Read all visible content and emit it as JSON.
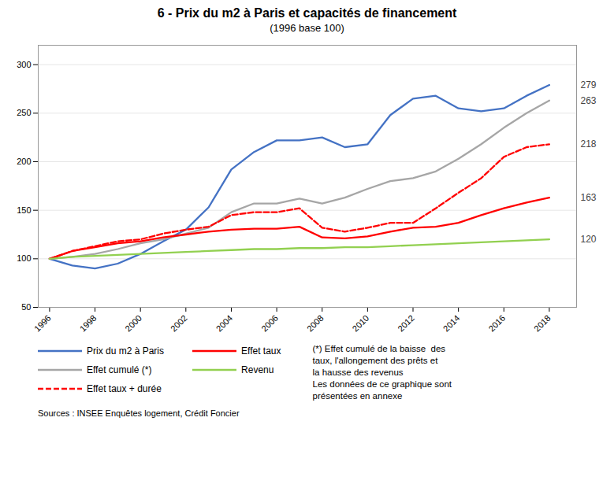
{
  "chart_data": {
    "type": "line",
    "title": "6 - Prix du m2 à Paris et capacités de financement",
    "subtitle": "(1996 base 100)",
    "x": [
      1996,
      1997,
      1998,
      1999,
      2000,
      2001,
      2002,
      2003,
      2004,
      2005,
      2006,
      2007,
      2008,
      2009,
      2010,
      2011,
      2012,
      2013,
      2014,
      2015,
      2016,
      2017,
      2018
    ],
    "series": [
      {
        "name": "Prix du m2 à Paris",
        "color": "#4472C4",
        "line_style": "solid",
        "values": [
          100,
          93,
          90,
          95,
          105,
          118,
          130,
          153,
          192,
          210,
          222,
          222,
          225,
          215,
          218,
          248,
          265,
          268,
          255,
          252,
          255,
          268,
          279
        ]
      },
      {
        "name": "Effet cumulé (*)",
        "color": "#A6A6A6",
        "line_style": "solid",
        "values": [
          100,
          102,
          105,
          110,
          116,
          120,
          126,
          132,
          148,
          157,
          157,
          162,
          157,
          163,
          172,
          180,
          183,
          190,
          203,
          218,
          235,
          250,
          263
        ]
      },
      {
        "name": "Effet taux + durée",
        "color": "#FF0000",
        "line_style": "dashed",
        "values": [
          100,
          108,
          113,
          118,
          120,
          126,
          130,
          133,
          145,
          148,
          148,
          152,
          132,
          128,
          132,
          137,
          137,
          152,
          168,
          183,
          205,
          215,
          218
        ]
      },
      {
        "name": "Effet taux",
        "color": "#FF0000",
        "line_style": "solid",
        "values": [
          100,
          108,
          112,
          116,
          118,
          122,
          125,
          128,
          130,
          131,
          131,
          133,
          122,
          121,
          123,
          128,
          132,
          133,
          137,
          145,
          152,
          158,
          163
        ]
      },
      {
        "name": "Revenu",
        "color": "#92D050",
        "line_style": "solid",
        "values": [
          100,
          102,
          103,
          104,
          105,
          106,
          107,
          108,
          109,
          110,
          110,
          111,
          111,
          112,
          112,
          113,
          114,
          115,
          116,
          117,
          118,
          119,
          120
        ]
      }
    ],
    "xlim": [
      1995.5,
      2019.2
    ],
    "xticks": [
      1996,
      1998,
      2000,
      2002,
      2004,
      2006,
      2008,
      2010,
      2012,
      2014,
      2016,
      2018
    ],
    "ylim": [
      50,
      320
    ],
    "yticks": [
      50,
      100,
      150,
      200,
      250,
      300
    ],
    "grid": true,
    "legend": "bottom",
    "annotations": [
      {
        "text": "279",
        "y": 279
      },
      {
        "text": "263",
        "y": 263
      },
      {
        "text": "218",
        "y": 218
      },
      {
        "text": "163",
        "y": 163
      },
      {
        "text": "120",
        "y": 120
      }
    ],
    "note": "(*) Effet cumulé de la baisse  des\ntaux, l'allongement des prêts et\nla hausse des revenus\nLes données de ce graphique sont\nprésentées en annexe",
    "source": "Sources : INSEE Enquêtes logement, Crédit Foncier"
  }
}
